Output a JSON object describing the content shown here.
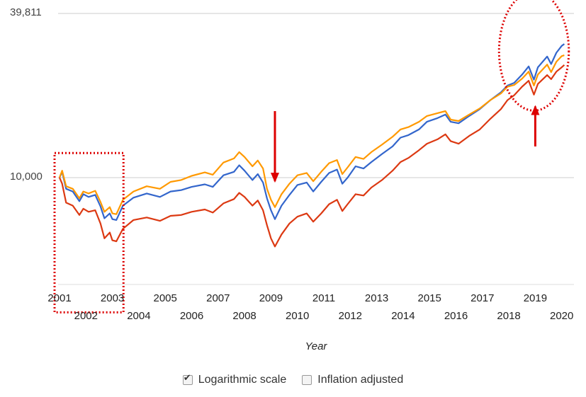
{
  "chart_data": {
    "type": "line",
    "y_scale": "log",
    "ylim": [
      5000,
      39811
    ],
    "xlim": [
      2001,
      2020.1
    ],
    "y_tick_labels": [
      "39,811",
      "10,000"
    ],
    "y_ticks": [
      39811,
      10000
    ],
    "x_ticks_row1": [
      "2001",
      "2003",
      "2005",
      "2007",
      "2009",
      "2011",
      "2013",
      "2015",
      "2017",
      "2019"
    ],
    "x_ticks_row2": [
      "2002",
      "2004",
      "2006",
      "2008",
      "2010",
      "2012",
      "2014",
      "2016",
      "2018",
      "2020"
    ],
    "xlabel": "Year",
    "ylabel": "",
    "grid": "horizontal",
    "series": [
      {
        "color": "#3366cc",
        "points": [
          [
            2001.0,
            10000
          ],
          [
            2001.1,
            10500
          ],
          [
            2001.25,
            9100
          ],
          [
            2001.5,
            8900
          ],
          [
            2001.75,
            8200
          ],
          [
            2001.9,
            8700
          ],
          [
            2002.1,
            8500
          ],
          [
            2002.35,
            8650
          ],
          [
            2002.55,
            7850
          ],
          [
            2002.7,
            7100
          ],
          [
            2002.9,
            7400
          ],
          [
            2003.0,
            7050
          ],
          [
            2003.15,
            7000
          ],
          [
            2003.4,
            7900
          ],
          [
            2003.8,
            8450
          ],
          [
            2004.3,
            8750
          ],
          [
            2004.8,
            8500
          ],
          [
            2005.2,
            8900
          ],
          [
            2005.6,
            9000
          ],
          [
            2006.0,
            9250
          ],
          [
            2006.5,
            9450
          ],
          [
            2006.8,
            9250
          ],
          [
            2007.2,
            10200
          ],
          [
            2007.6,
            10500
          ],
          [
            2007.8,
            11100
          ],
          [
            2008.0,
            10600
          ],
          [
            2008.3,
            9800
          ],
          [
            2008.5,
            10300
          ],
          [
            2008.7,
            9600
          ],
          [
            2008.85,
            8400
          ],
          [
            2009.0,
            7600
          ],
          [
            2009.15,
            7050
          ],
          [
            2009.4,
            7900
          ],
          [
            2009.7,
            8650
          ],
          [
            2010.0,
            9400
          ],
          [
            2010.35,
            9600
          ],
          [
            2010.6,
            8900
          ],
          [
            2010.9,
            9650
          ],
          [
            2011.2,
            10400
          ],
          [
            2011.5,
            10700
          ],
          [
            2011.7,
            9500
          ],
          [
            2011.9,
            10000
          ],
          [
            2012.2,
            11000
          ],
          [
            2012.5,
            10800
          ],
          [
            2012.8,
            11400
          ],
          [
            2013.2,
            12200
          ],
          [
            2013.6,
            13000
          ],
          [
            2013.9,
            14000
          ],
          [
            2014.2,
            14300
          ],
          [
            2014.6,
            15000
          ],
          [
            2014.9,
            16000
          ],
          [
            2015.3,
            16500
          ],
          [
            2015.6,
            17000
          ],
          [
            2015.8,
            16000
          ],
          [
            2016.1,
            15800
          ],
          [
            2016.5,
            16800
          ],
          [
            2016.9,
            17800
          ],
          [
            2017.3,
            19200
          ],
          [
            2017.7,
            20500
          ],
          [
            2017.95,
            21700
          ],
          [
            2018.2,
            22200
          ],
          [
            2018.5,
            23800
          ],
          [
            2018.75,
            25500
          ],
          [
            2018.95,
            22800
          ],
          [
            2019.1,
            25300
          ],
          [
            2019.45,
            27700
          ],
          [
            2019.6,
            26000
          ],
          [
            2019.8,
            28600
          ],
          [
            2020.0,
            30300
          ],
          [
            2020.1,
            30800
          ]
        ]
      },
      {
        "color": "#ff9900",
        "points": [
          [
            2001.0,
            10000
          ],
          [
            2001.1,
            10600
          ],
          [
            2001.25,
            9300
          ],
          [
            2001.5,
            9100
          ],
          [
            2001.75,
            8400
          ],
          [
            2001.9,
            8900
          ],
          [
            2002.1,
            8750
          ],
          [
            2002.35,
            8950
          ],
          [
            2002.55,
            8150
          ],
          [
            2002.7,
            7500
          ],
          [
            2002.9,
            7800
          ],
          [
            2003.0,
            7400
          ],
          [
            2003.15,
            7350
          ],
          [
            2003.4,
            8300
          ],
          [
            2003.8,
            8900
          ],
          [
            2004.3,
            9300
          ],
          [
            2004.8,
            9100
          ],
          [
            2005.2,
            9650
          ],
          [
            2005.6,
            9800
          ],
          [
            2006.0,
            10150
          ],
          [
            2006.5,
            10450
          ],
          [
            2006.8,
            10250
          ],
          [
            2007.2,
            11350
          ],
          [
            2007.6,
            11750
          ],
          [
            2007.8,
            12400
          ],
          [
            2008.0,
            11900
          ],
          [
            2008.3,
            11000
          ],
          [
            2008.5,
            11550
          ],
          [
            2008.7,
            10800
          ],
          [
            2008.85,
            9100
          ],
          [
            2009.0,
            8300
          ],
          [
            2009.15,
            7800
          ],
          [
            2009.4,
            8700
          ],
          [
            2009.7,
            9500
          ],
          [
            2010.0,
            10200
          ],
          [
            2010.35,
            10400
          ],
          [
            2010.6,
            9700
          ],
          [
            2010.9,
            10500
          ],
          [
            2011.2,
            11300
          ],
          [
            2011.5,
            11600
          ],
          [
            2011.7,
            10300
          ],
          [
            2011.9,
            10900
          ],
          [
            2012.2,
            11900
          ],
          [
            2012.5,
            11700
          ],
          [
            2012.8,
            12400
          ],
          [
            2013.2,
            13200
          ],
          [
            2013.6,
            14100
          ],
          [
            2013.9,
            15000
          ],
          [
            2014.2,
            15300
          ],
          [
            2014.6,
            16000
          ],
          [
            2014.9,
            16800
          ],
          [
            2015.3,
            17200
          ],
          [
            2015.6,
            17500
          ],
          [
            2015.8,
            16300
          ],
          [
            2016.1,
            16100
          ],
          [
            2016.5,
            17000
          ],
          [
            2016.9,
            17900
          ],
          [
            2017.3,
            19200
          ],
          [
            2017.7,
            20300
          ],
          [
            2017.95,
            21500
          ],
          [
            2018.2,
            21800
          ],
          [
            2018.5,
            23000
          ],
          [
            2018.75,
            24400
          ],
          [
            2018.95,
            21700
          ],
          [
            2019.1,
            23800
          ],
          [
            2019.45,
            25900
          ],
          [
            2019.6,
            24300
          ],
          [
            2019.8,
            26500
          ],
          [
            2020.0,
            27800
          ],
          [
            2020.1,
            28000
          ]
        ]
      },
      {
        "color": "#dc3912",
        "points": [
          [
            2001.0,
            10000
          ],
          [
            2001.1,
            9500
          ],
          [
            2001.25,
            8100
          ],
          [
            2001.5,
            7900
          ],
          [
            2001.75,
            7300
          ],
          [
            2001.9,
            7700
          ],
          [
            2002.1,
            7500
          ],
          [
            2002.35,
            7600
          ],
          [
            2002.55,
            6800
          ],
          [
            2002.7,
            6000
          ],
          [
            2002.9,
            6300
          ],
          [
            2003.0,
            5900
          ],
          [
            2003.15,
            5850
          ],
          [
            2003.4,
            6500
          ],
          [
            2003.8,
            7000
          ],
          [
            2004.3,
            7150
          ],
          [
            2004.8,
            6950
          ],
          [
            2005.2,
            7250
          ],
          [
            2005.6,
            7300
          ],
          [
            2006.0,
            7500
          ],
          [
            2006.5,
            7650
          ],
          [
            2006.8,
            7450
          ],
          [
            2007.2,
            8050
          ],
          [
            2007.6,
            8350
          ],
          [
            2007.8,
            8800
          ],
          [
            2008.0,
            8500
          ],
          [
            2008.3,
            7900
          ],
          [
            2008.5,
            8250
          ],
          [
            2008.7,
            7600
          ],
          [
            2008.85,
            6700
          ],
          [
            2009.0,
            6000
          ],
          [
            2009.15,
            5600
          ],
          [
            2009.4,
            6200
          ],
          [
            2009.7,
            6800
          ],
          [
            2010.0,
            7200
          ],
          [
            2010.35,
            7400
          ],
          [
            2010.6,
            6900
          ],
          [
            2010.9,
            7400
          ],
          [
            2011.2,
            8000
          ],
          [
            2011.5,
            8300
          ],
          [
            2011.7,
            7550
          ],
          [
            2011.9,
            8000
          ],
          [
            2012.2,
            8700
          ],
          [
            2012.5,
            8600
          ],
          [
            2012.8,
            9200
          ],
          [
            2013.2,
            9800
          ],
          [
            2013.6,
            10600
          ],
          [
            2013.9,
            11400
          ],
          [
            2014.2,
            11800
          ],
          [
            2014.6,
            12600
          ],
          [
            2014.9,
            13300
          ],
          [
            2015.3,
            13800
          ],
          [
            2015.6,
            14400
          ],
          [
            2015.8,
            13600
          ],
          [
            2016.1,
            13300
          ],
          [
            2016.5,
            14200
          ],
          [
            2016.9,
            15000
          ],
          [
            2017.3,
            16400
          ],
          [
            2017.7,
            17800
          ],
          [
            2017.95,
            19200
          ],
          [
            2018.2,
            20000
          ],
          [
            2018.5,
            21500
          ],
          [
            2018.75,
            22600
          ],
          [
            2018.95,
            20100
          ],
          [
            2019.1,
            22000
          ],
          [
            2019.45,
            23700
          ],
          [
            2019.6,
            22900
          ],
          [
            2019.8,
            24400
          ],
          [
            2020.0,
            25300
          ],
          [
            2020.1,
            25800
          ]
        ]
      }
    ],
    "annotations": [
      {
        "type": "dotted-rect",
        "color": "#dd0000",
        "x0": 2001.0,
        "x1": 2003.5,
        "y0": 4600,
        "y1": 12300
      },
      {
        "type": "down-arrow",
        "color": "#dd0000",
        "x": 2009.15,
        "y_from": 17500,
        "y_to": 9700
      },
      {
        "type": "up-arrow",
        "color": "#dd0000",
        "x": 2019.0,
        "y_from": 13000,
        "y_to": 18200
      },
      {
        "type": "dotted-ellipse",
        "color": "#dd0000",
        "cx": 2018.95,
        "cy": 29000,
        "rx_years": 1.32,
        "ry_factor": 1.65
      }
    ]
  },
  "controls": {
    "log_label": "Logarithmic scale",
    "log_checked": true,
    "inflation_label": "Inflation adjusted",
    "inflation_checked": false
  }
}
